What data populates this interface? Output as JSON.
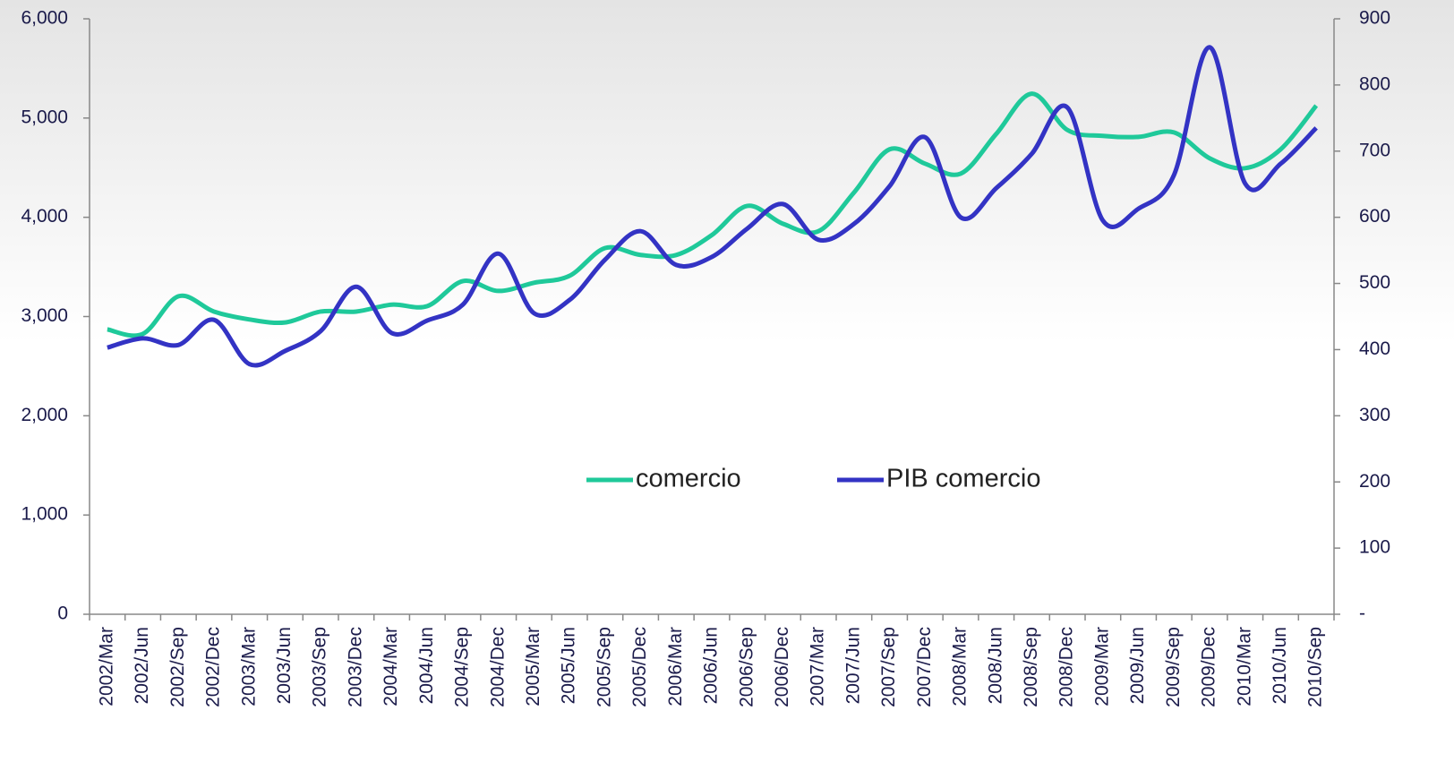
{
  "chart_data": {
    "type": "line",
    "categories": [
      "2002/Mar",
      "2002/Jun",
      "2002/Sep",
      "2002/Dec",
      "2003/Mar",
      "2003/Jun",
      "2003/Sep",
      "2003/Dec",
      "2004/Mar",
      "2004/Jun",
      "2004/Sep",
      "2004/Dec",
      "2005/Mar",
      "2005/Jun",
      "2005/Sep",
      "2005/Dec",
      "2006/Mar",
      "2006/Jun",
      "2006/Sep",
      "2006/Dec",
      "2007/Mar",
      "2007/Jun",
      "2007/Sep",
      "2007/Dec",
      "2008/Mar",
      "2008/Jun",
      "2008/Sep",
      "2008/Dec",
      "2009/Mar",
      "2009/Jun",
      "2009/Sep",
      "2009/Dec",
      "2010/Mar",
      "2010/Jun",
      "2010/Sep"
    ],
    "series": [
      {
        "name": "comercio",
        "color": "#1fc99a",
        "values": [
          2870,
          2825,
          3204,
          3050,
          2970,
          2940,
          3050,
          3050,
          3120,
          3105,
          3357,
          3258,
          3340,
          3410,
          3690,
          3620,
          3620,
          3820,
          4115,
          3935,
          3860,
          4250,
          4685,
          4540,
          4440,
          4840,
          5245,
          4880,
          4820,
          4810,
          4855,
          4595,
          4495,
          4685,
          5125
        ]
      },
      {
        "name": "PIB comercio",
        "color": "#3333c4",
        "axis": "y2",
        "values": [
          403,
          417,
          407,
          445,
          378,
          398,
          428,
          495,
          425,
          444,
          468,
          545,
          455,
          475,
          536,
          579,
          528,
          540,
          583,
          620,
          566,
          590,
          647,
          721,
          600,
          644,
          696,
          766,
          595,
          613,
          664,
          857,
          651,
          681,
          735
        ]
      }
    ],
    "ylim": [
      0,
      6000
    ],
    "yticks": [
      0,
      {
        "value": 1000,
        "label": "1,000"
      },
      {
        "value": 2000,
        "label": "2,000"
      },
      {
        "value": 3000,
        "label": "3,000"
      },
      {
        "value": 4000,
        "label": "4,000"
      },
      {
        "value": 5000,
        "label": "5,000"
      },
      {
        "value": 6000,
        "label": "6,000"
      }
    ],
    "y2lim": [
      0,
      900
    ],
    "y2ticks": [
      {
        "value": 0,
        "label": "-"
      },
      100,
      200,
      300,
      400,
      500,
      600,
      700,
      800,
      900
    ],
    "legend": "center"
  }
}
